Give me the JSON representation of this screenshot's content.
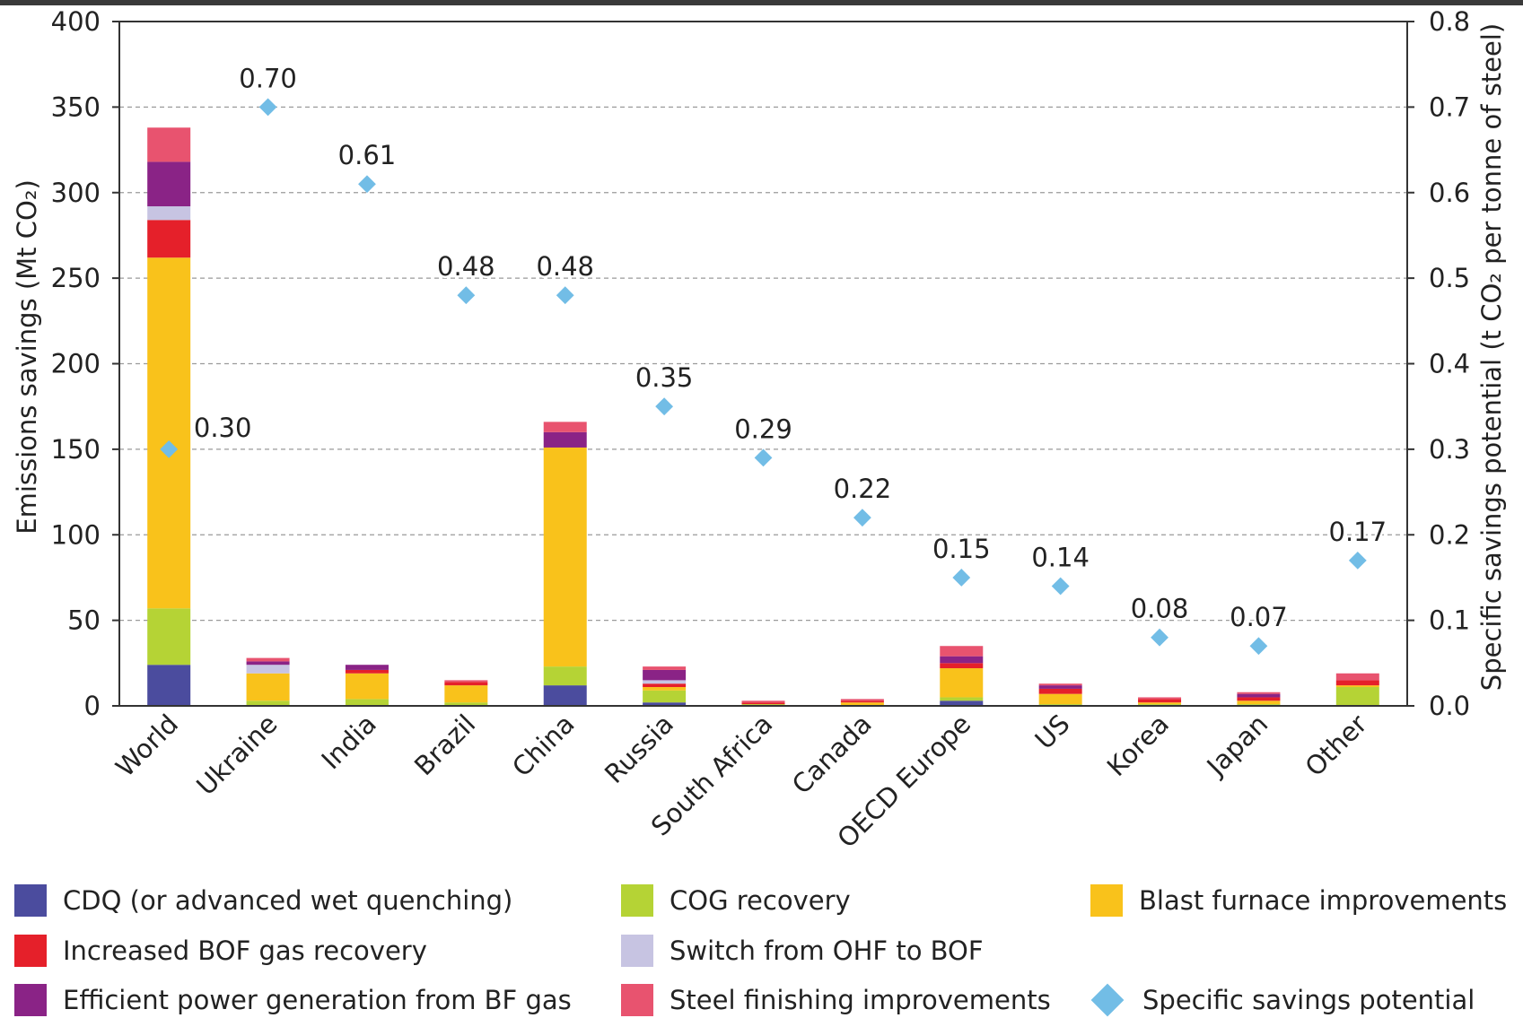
{
  "chart_data": {
    "type": "bar",
    "stacked": true,
    "categories": [
      "World",
      "Ukraine",
      "India",
      "Brazil",
      "China",
      "Russia",
      "South Africa",
      "Canada",
      "OECD Europe",
      "US",
      "Korea",
      "Japan",
      "Other"
    ],
    "series": [
      {
        "name": "CDQ (or advanced wet quenching)",
        "color": "#4b4c9e",
        "values": [
          24,
          0,
          0,
          0,
          12,
          2,
          0,
          0,
          3,
          0,
          0,
          0,
          0
        ]
      },
      {
        "name": "COG recovery",
        "color": "#b5d335",
        "values": [
          33,
          3,
          4,
          2,
          11,
          7,
          1,
          0,
          2,
          1,
          1,
          1,
          11
        ]
      },
      {
        "name": "Blast furnace improvements",
        "color": "#f9c21b",
        "values": [
          205,
          16,
          15,
          10,
          128,
          2,
          0,
          2,
          17,
          6,
          1,
          2,
          1
        ]
      },
      {
        "name": "Increased BOF gas recovery",
        "color": "#e5202a",
        "values": [
          22,
          0,
          2,
          2,
          0,
          2,
          1,
          1,
          3,
          3,
          2,
          2,
          3
        ]
      },
      {
        "name": "Switch from OHF to BOF",
        "color": "#c7c4e2",
        "values": [
          8,
          5,
          0,
          0,
          0,
          2,
          0,
          0,
          0,
          0,
          0,
          0,
          0
        ]
      },
      {
        "name": "Efficient power generation from BF gas",
        "color": "#8a2386",
        "values": [
          26,
          2,
          3,
          0,
          9,
          6,
          0,
          0,
          4,
          2,
          0,
          2,
          0
        ]
      },
      {
        "name": "Steel finishing improvements",
        "color": "#e8536f",
        "values": [
          20,
          2,
          0,
          1,
          6,
          2,
          1,
          1,
          6,
          1,
          1,
          1,
          4
        ]
      }
    ],
    "secondary_series": {
      "name": "Specific savings potential",
      "type": "scatter",
      "marker": "diamond",
      "color": "#72bde6",
      "values": [
        0.3,
        0.7,
        0.61,
        0.48,
        0.48,
        0.35,
        0.29,
        0.22,
        0.15,
        0.14,
        0.08,
        0.07,
        0.17
      ],
      "labels": [
        "0.30",
        "0.70",
        "0.61",
        "0.48",
        "0.48",
        "0.35",
        "0.29",
        "0.22",
        "0.15",
        "0.14",
        "0.08",
        "0.07",
        "0.17"
      ]
    },
    "ylabel": "Emissions savings (Mt CO₂)",
    "y2label": "Specific savings potential (t CO₂ per tonne of steel)",
    "ylim": [
      0,
      400
    ],
    "y2lim": [
      0,
      0.8
    ],
    "yticks": [
      "0",
      "50",
      "100",
      "150",
      "200",
      "250",
      "300",
      "350",
      "400"
    ],
    "y2ticks": [
      "0.0",
      "0.1",
      "0.2",
      "0.3",
      "0.4",
      "0.5",
      "0.6",
      "0.7",
      "0.8"
    ],
    "grid": true,
    "legend_position": "bottom"
  },
  "legend": {
    "items": [
      {
        "label": "CDQ (or advanced wet quenching)",
        "color": "#4b4c9e"
      },
      {
        "label": "COG recovery",
        "color": "#b5d335"
      },
      {
        "label": "Blast furnace improvements",
        "color": "#f9c21b"
      },
      {
        "label": "Increased BOF gas recovery",
        "color": "#e5202a"
      },
      {
        "label": "Switch from OHF to BOF",
        "color": "#c7c4e2"
      },
      {
        "label": "Efficient power generation from BF gas",
        "color": "#8a2386"
      },
      {
        "label": "Steel finishing improvements",
        "color": "#e8536f"
      },
      {
        "label": "Specific savings potential",
        "color": "#72bde6"
      }
    ]
  }
}
